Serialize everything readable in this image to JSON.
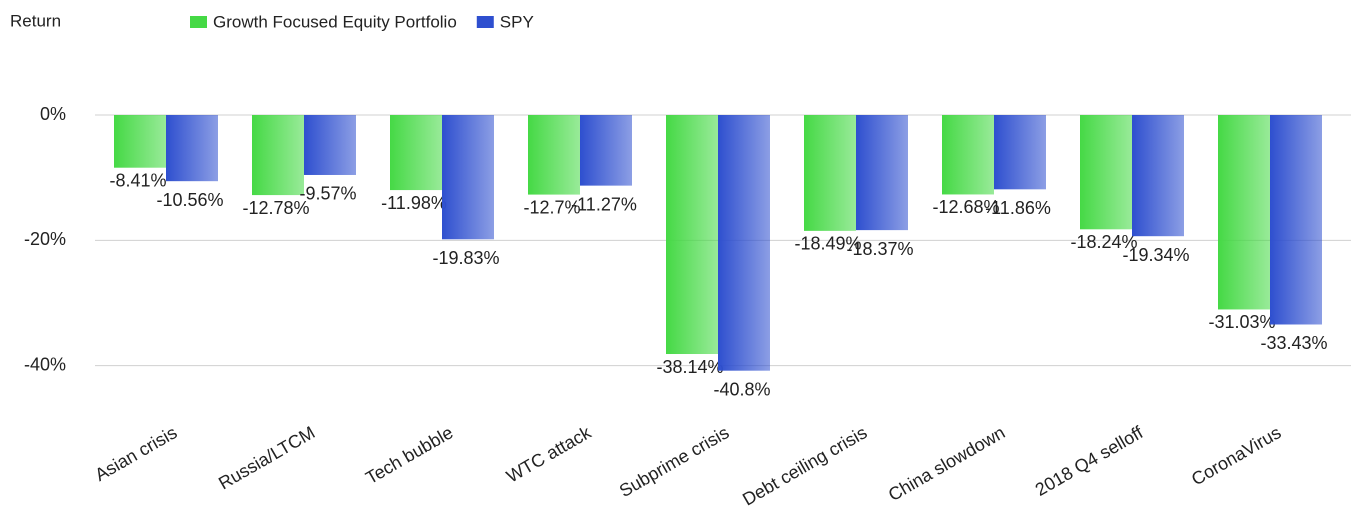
{
  "chart_data": {
    "type": "bar",
    "y_label": "Return",
    "categories": [
      "Asian crisis",
      "Russia/LTCM",
      "Tech bubble",
      "WTC attack",
      "Subprime crisis",
      "Debt ceiling crisis",
      "China slowdown",
      "2018 Q4 selloff",
      "CoronaVirus"
    ],
    "series": [
      {
        "name": "Growth Focused Equity Portfolio",
        "color": "#45d945",
        "values": [
          -8.41,
          -12.78,
          -11.98,
          -12.7,
          -38.14,
          -18.49,
          -12.68,
          -18.24,
          -31.03
        ],
        "value_labels": [
          "-8.41%",
          "-12.78%",
          "-11.98%",
          "-12.7%",
          "-38.14%",
          "-18.49%",
          "-12.68%",
          "-18.24%",
          "-31.03%"
        ]
      },
      {
        "name": "SPY",
        "color": "#2e4fcf",
        "values": [
          -10.56,
          -9.57,
          -19.83,
          -11.27,
          -40.8,
          -18.37,
          -11.86,
          -19.34,
          -33.43
        ],
        "value_labels": [
          "-10.56%",
          "-9.57%",
          "-19.83%",
          "-11.27%",
          "-40.8%",
          "-18.37%",
          "-11.86%",
          "-19.34%",
          "-33.43%"
        ]
      }
    ],
    "ylim": [
      -45,
      0
    ],
    "yticks": [
      {
        "value": 0,
        "label": "0%"
      },
      {
        "value": -20,
        "label": "-20%"
      },
      {
        "value": -40,
        "label": "-40%"
      }
    ],
    "grid": true,
    "legend": "top"
  }
}
